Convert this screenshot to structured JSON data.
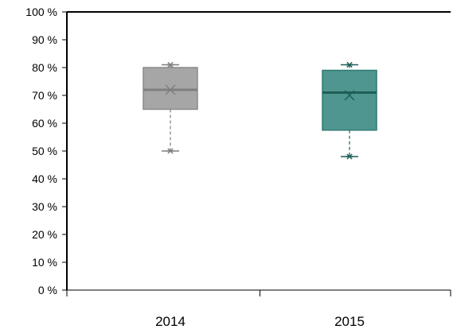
{
  "chart_data": {
    "type": "box",
    "title": "",
    "xlabel": "",
    "ylabel": "",
    "categories": [
      "2014",
      "2015"
    ],
    "y_unit": "%",
    "ylim": [
      0,
      100
    ],
    "yticks": [
      0,
      10,
      20,
      30,
      40,
      50,
      60,
      70,
      80,
      90,
      100
    ],
    "ytick_labels": [
      "0 %",
      "10 %",
      "20 %",
      "30 %",
      "40 %",
      "50 %",
      "60 %",
      "70 %",
      "80 %",
      "90 %",
      "100 %"
    ],
    "grid": false,
    "legend": "none",
    "boxes": [
      {
        "category": "2014",
        "min": 50,
        "q1": 65,
        "median": 72,
        "q3": 80,
        "max": 81,
        "mean": 72,
        "color": "#a6a6a6",
        "stroke": "#8a8a8a",
        "line_color": "#7f7f7f"
      },
      {
        "category": "2015",
        "min": 48,
        "q1": 57.5,
        "median": 71,
        "q3": 79,
        "max": 81,
        "mean": 70,
        "color": "#4f9690",
        "stroke": "#2f7a72",
        "line_color": "#1f5f58"
      }
    ]
  }
}
